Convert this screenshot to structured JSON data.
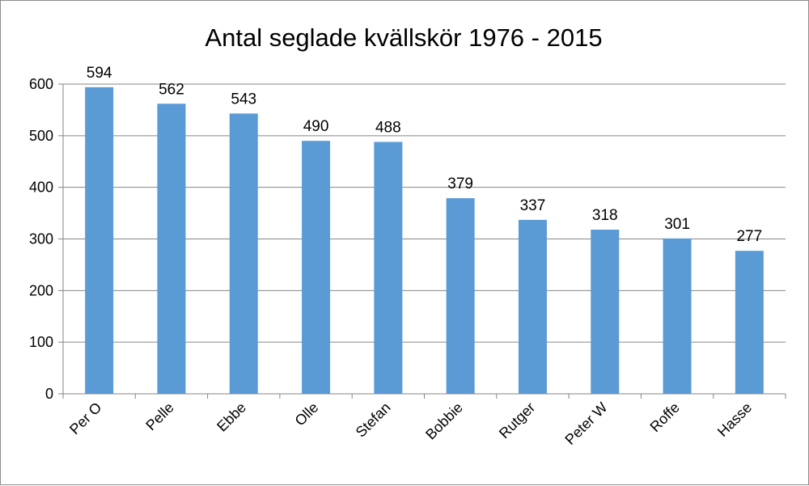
{
  "chart_data": {
    "type": "bar",
    "title": "Antal seglade kvällskör 1976 - 2015",
    "xlabel": "",
    "ylabel": "",
    "categories": [
      "Per O",
      "Pelle",
      "Ebbe",
      "Olle",
      "Stefan",
      "Bobbie",
      "Rutger",
      "Peter W",
      "Roffe",
      "Hasse"
    ],
    "values": [
      594,
      562,
      543,
      490,
      488,
      379,
      337,
      318,
      301,
      277
    ],
    "ylim": [
      0,
      600
    ],
    "yticks": [
      0,
      100,
      200,
      300,
      400,
      500,
      600
    ],
    "grid": true,
    "data_labels": true,
    "legend": "none",
    "bar_color": "#5b9bd5",
    "gridline_color": "#868686"
  }
}
